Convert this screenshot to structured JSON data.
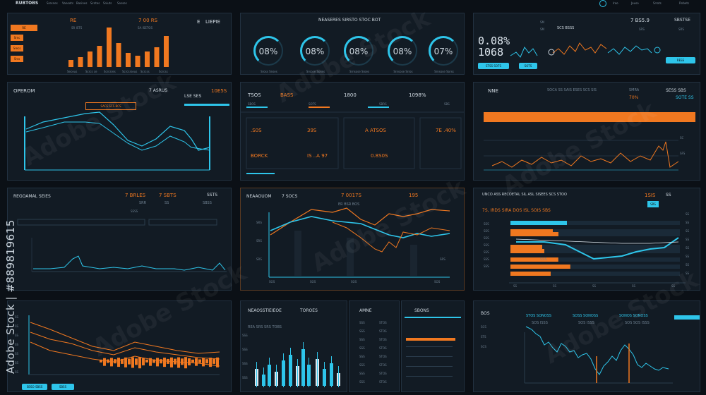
{
  "topbar": {
    "title": "RUBTOBS",
    "menu": [
      "Sresnes",
      "Vanoots",
      "Basines",
      "Scntes",
      "Sniuts",
      "Sosses"
    ],
    "right": [
      "Iroo",
      "Jouso",
      "Srrots",
      "Rnbets"
    ]
  },
  "watermark": {
    "side_text": "Adobe Stock | #889819615",
    "tile_text": "Adobe Stock"
  },
  "colors": {
    "accent_orange": "#f07820",
    "accent_cyan": "#2ec5ea",
    "panel_bg": "#121b24",
    "page_bg": "#0b1016"
  },
  "panels": {
    "p1": {
      "left_tags": [
        "RE",
        "Srnc",
        "Srecs",
        "Srss"
      ],
      "title": "RE",
      "sub": "SR ISTS",
      "stat1": "7 00 RS",
      "stat2": "SA ISETOS",
      "right": "E",
      "right_title": "LIEPIE",
      "bars": [
        10,
        14,
        22,
        30,
        56,
        34,
        20,
        16,
        22,
        28,
        44
      ],
      "xlabels": [
        "Seceus",
        "Scrcs ce",
        "Scrcsres",
        "Scrcsrseus",
        "Scrcss",
        "Scrcss"
      ]
    },
    "p2": {
      "title": "NEASERES SIRSTO STOC BOT",
      "gauges": [
        {
          "value": "08%",
          "label": "Sross Snses"
        },
        {
          "value": "08%",
          "label": "Srsose Soses"
        },
        {
          "value": "08%",
          "label": "Srnsose Sroes"
        },
        {
          "value": "08%",
          "label": "Srnsose Srros"
        },
        {
          "value": "07%",
          "label": "Srnsose Sorss"
        }
      ]
    },
    "p3": {
      "big1": "0.08%",
      "big2": "1068",
      "sub1": "SM",
      "sub2": "SM",
      "stat": "SCS BSSS",
      "top_value": "7 BS5.9",
      "top_label": "SBSTSE",
      "r1": "SRS",
      "r2": "SRS",
      "chip1": "STSS SOTS",
      "chip2": "SOTS",
      "chip3": "RESS"
    },
    "p4": {
      "title": "OPEROM",
      "value": "7 ASRUS",
      "label2": "LSE SES",
      "value2": "10E5S",
      "chip": "SACS SCS BCS"
    },
    "p5": {
      "cols": [
        "TSOS",
        "BASS",
        "1800",
        "1098%"
      ],
      "subs": [
        "SBOS",
        "SOTS",
        "SBRS",
        "SBS"
      ],
      "rows": [
        {
          "l": ".S0S",
          "r": "39S"
        },
        {
          "l": "BORCK",
          "r": "IS ..A 97"
        },
        {
          "l": "A ATSOS"
        },
        {
          "l": "0.8S0S"
        },
        {
          "l": "7E .40%"
        }
      ]
    },
    "p6": {
      "title": "NNE",
      "stat": "SOCA SS SAIS ESES SCS SIS",
      "right": "SESS SBS",
      "right_sub": "SMRA",
      "pct": "70%",
      "val": "SOTE SS",
      "ylab1": "SC",
      "ylab2": "SFS",
      "xlabels": [
        "SS",
        "SSS",
        "SSS",
        "SSS",
        "SSS",
        "SSS",
        "SSS",
        "SSS"
      ]
    },
    "p7": {
      "title": "REGOAMAL SEIES",
      "v1": "7 BRLES",
      "v2": "7 SBTS",
      "chip": "SSTS",
      "sub1": "SRR",
      "sub2": "SS",
      "sub3": "SBSS",
      "tick": "SSSS"
    },
    "p8": {
      "title": "NEAAOUOM",
      "stat": "7 0017S",
      "pct": "195",
      "stat2": "7 SOCS",
      "legend": "ER BSR BOS",
      "xlabels": [
        "SOS",
        "SOS",
        "SOS",
        "SOS"
      ],
      "ylabels": [
        "SRS",
        "SRS",
        "SRS",
        "SRS"
      ]
    },
    "p9": {
      "title": "UNCO ASS RECOETAL SIL ASL SISEES SCS STOO",
      "sub": "7S, IRDS SIRA DOS ISL SOIS SBS",
      "v1": "1SIS",
      "v2": "SS",
      "chip": "SRS",
      "rows": [
        "SSS",
        "SSS",
        "SSS",
        "SSS",
        "SSS",
        "SSS",
        "SSS"
      ],
      "cb": "SSS",
      "ylabels": [
        "SS",
        "SS",
        "SS",
        "SS",
        "SS",
        "SS",
        "SS",
        "SS"
      ],
      "xlabels": [
        "SS",
        "SS",
        "SS",
        "SS",
        "SS"
      ]
    },
    "p10": {
      "chip1": "SBSO SBSS",
      "chip2": "SBSS",
      "ylabels": [
        "SS",
        "SS",
        "SS",
        "SS",
        "SS",
        "SS",
        "SS"
      ]
    },
    "p11": {
      "title": "NEAOSSTIEIEOE",
      "tag": "TOROES",
      "sub": "REA SRS SRS TOBS",
      "ylabels": [
        "SSS",
        "SSS",
        "SSS",
        "SSS"
      ]
    },
    "p12": {
      "title": "AMNE",
      "rows": [
        {
          "l": "SSS",
          "v": "STOS"
        },
        {
          "l": "SSS",
          "v": "STOS"
        },
        {
          "l": "SSS",
          "v": "STOS"
        },
        {
          "l": "SSS",
          "v": "STOS"
        },
        {
          "l": "SSS",
          "v": "STOS"
        },
        {
          "l": "SSS",
          "v": "STOS"
        },
        {
          "l": "SSS",
          "v": "STOS"
        },
        {
          "l": "SSS",
          "v": "STOS"
        }
      ]
    },
    "p13": {
      "title": "SBONS"
    },
    "p14": {
      "title": "BOS",
      "l1": "SCS",
      "l2": "STS",
      "l3": "SCS",
      "chip1": "STOS SONOSS",
      "chip2": "SOSS SONOSS",
      "chip3": "SONOS SONOSS",
      "sub1": "SOS ISSS",
      "sub2": "SOS ISSS",
      "sub3": "SOS SOS ISSS",
      "ylabels": [
        "SS",
        "SS",
        "SS",
        "SS",
        "SS",
        "SS",
        "SS",
        "SS"
      ],
      "xlabels": [
        "SOS",
        "SOS",
        "SOS",
        "SOS",
        "SOS"
      ]
    }
  }
}
